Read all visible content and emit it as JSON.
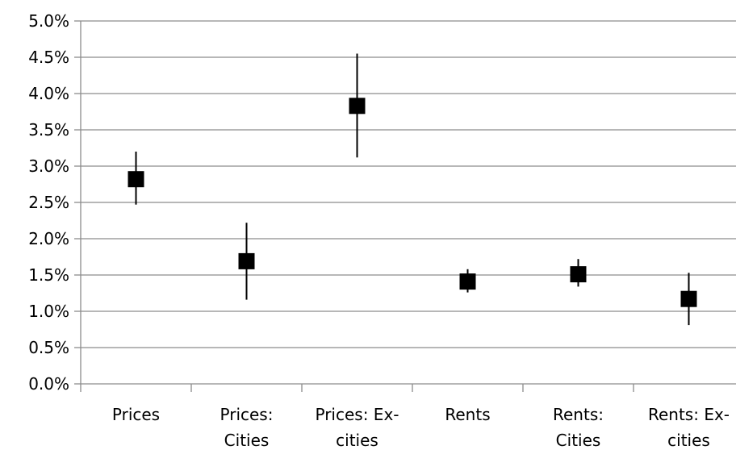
{
  "chart_data": {
    "type": "scatter",
    "title": "",
    "xlabel": "",
    "ylabel": "",
    "ylim": [
      0,
      0.05
    ],
    "yticks": [
      "0.0%",
      "0.5%",
      "1.0%",
      "1.5%",
      "2.0%",
      "2.5%",
      "3.0%",
      "3.5%",
      "4.0%",
      "4.5%",
      "5.0%"
    ],
    "grid": "horizontal",
    "categories": [
      [
        "Prices"
      ],
      [
        "Prices:",
        "Cities"
      ],
      [
        "Prices: Ex-",
        "cities"
      ],
      [
        "Rents"
      ],
      [
        "Rents:",
        "Cities"
      ],
      [
        "Rents: Ex-",
        "cities"
      ]
    ],
    "series": [
      {
        "values": [
          0.0282,
          0.0169,
          0.0383,
          0.0141,
          0.0151,
          0.0117
        ],
        "low": [
          0.0247,
          0.0116,
          0.0312,
          0.0126,
          0.0134,
          0.0081
        ],
        "high": [
          0.032,
          0.0222,
          0.0455,
          0.0158,
          0.0172,
          0.0153
        ]
      }
    ],
    "marker": "square",
    "color": "#000000"
  }
}
